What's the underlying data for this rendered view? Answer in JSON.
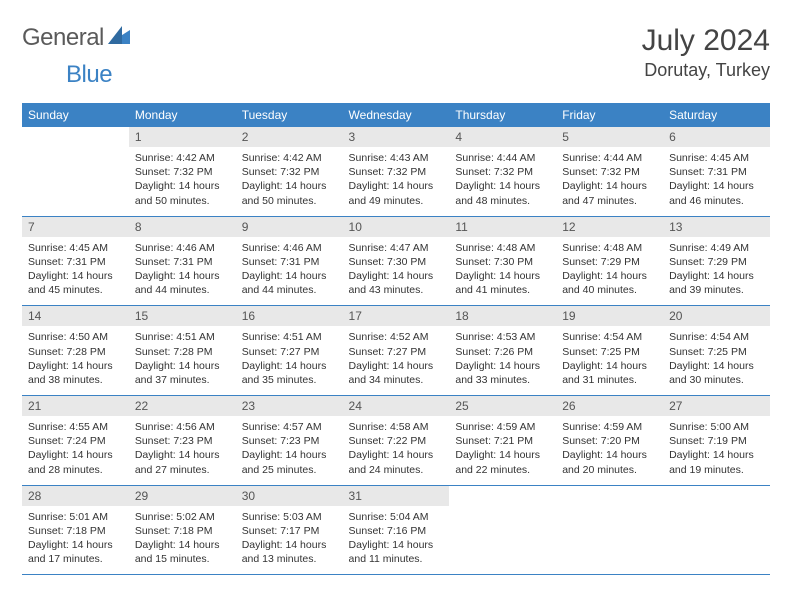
{
  "logo": {
    "text_a": "General",
    "text_b": "Blue"
  },
  "title": {
    "month": "July 2024",
    "location": "Dorutay, Turkey"
  },
  "colors": {
    "header_bg": "#3b82c4",
    "header_text": "#ffffff",
    "daynum_bg": "#e8e8e8",
    "cell_border": "#3b82c4",
    "body_text": "#333333",
    "logo_gray": "#5a5a5a",
    "logo_blue": "#3b82c4",
    "background": "#ffffff"
  },
  "typography": {
    "title_month_fontsize": 30,
    "title_loc_fontsize": 18,
    "dayhdr_fontsize": 12,
    "daynum_fontsize": 12,
    "body_fontsize": 10.5,
    "logo_fontsize": 24
  },
  "day_headers": [
    "Sunday",
    "Monday",
    "Tuesday",
    "Wednesday",
    "Thursday",
    "Friday",
    "Saturday"
  ],
  "weeks": [
    [
      {
        "num": "",
        "lines": []
      },
      {
        "num": "1",
        "lines": [
          "Sunrise: 4:42 AM",
          "Sunset: 7:32 PM",
          "Daylight: 14 hours and 50 minutes."
        ]
      },
      {
        "num": "2",
        "lines": [
          "Sunrise: 4:42 AM",
          "Sunset: 7:32 PM",
          "Daylight: 14 hours and 50 minutes."
        ]
      },
      {
        "num": "3",
        "lines": [
          "Sunrise: 4:43 AM",
          "Sunset: 7:32 PM",
          "Daylight: 14 hours and 49 minutes."
        ]
      },
      {
        "num": "4",
        "lines": [
          "Sunrise: 4:44 AM",
          "Sunset: 7:32 PM",
          "Daylight: 14 hours and 48 minutes."
        ]
      },
      {
        "num": "5",
        "lines": [
          "Sunrise: 4:44 AM",
          "Sunset: 7:32 PM",
          "Daylight: 14 hours and 47 minutes."
        ]
      },
      {
        "num": "6",
        "lines": [
          "Sunrise: 4:45 AM",
          "Sunset: 7:31 PM",
          "Daylight: 14 hours and 46 minutes."
        ]
      }
    ],
    [
      {
        "num": "7",
        "lines": [
          "Sunrise: 4:45 AM",
          "Sunset: 7:31 PM",
          "Daylight: 14 hours and 45 minutes."
        ]
      },
      {
        "num": "8",
        "lines": [
          "Sunrise: 4:46 AM",
          "Sunset: 7:31 PM",
          "Daylight: 14 hours and 44 minutes."
        ]
      },
      {
        "num": "9",
        "lines": [
          "Sunrise: 4:46 AM",
          "Sunset: 7:31 PM",
          "Daylight: 14 hours and 44 minutes."
        ]
      },
      {
        "num": "10",
        "lines": [
          "Sunrise: 4:47 AM",
          "Sunset: 7:30 PM",
          "Daylight: 14 hours and 43 minutes."
        ]
      },
      {
        "num": "11",
        "lines": [
          "Sunrise: 4:48 AM",
          "Sunset: 7:30 PM",
          "Daylight: 14 hours and 41 minutes."
        ]
      },
      {
        "num": "12",
        "lines": [
          "Sunrise: 4:48 AM",
          "Sunset: 7:29 PM",
          "Daylight: 14 hours and 40 minutes."
        ]
      },
      {
        "num": "13",
        "lines": [
          "Sunrise: 4:49 AM",
          "Sunset: 7:29 PM",
          "Daylight: 14 hours and 39 minutes."
        ]
      }
    ],
    [
      {
        "num": "14",
        "lines": [
          "Sunrise: 4:50 AM",
          "Sunset: 7:28 PM",
          "Daylight: 14 hours and 38 minutes."
        ]
      },
      {
        "num": "15",
        "lines": [
          "Sunrise: 4:51 AM",
          "Sunset: 7:28 PM",
          "Daylight: 14 hours and 37 minutes."
        ]
      },
      {
        "num": "16",
        "lines": [
          "Sunrise: 4:51 AM",
          "Sunset: 7:27 PM",
          "Daylight: 14 hours and 35 minutes."
        ]
      },
      {
        "num": "17",
        "lines": [
          "Sunrise: 4:52 AM",
          "Sunset: 7:27 PM",
          "Daylight: 14 hours and 34 minutes."
        ]
      },
      {
        "num": "18",
        "lines": [
          "Sunrise: 4:53 AM",
          "Sunset: 7:26 PM",
          "Daylight: 14 hours and 33 minutes."
        ]
      },
      {
        "num": "19",
        "lines": [
          "Sunrise: 4:54 AM",
          "Sunset: 7:25 PM",
          "Daylight: 14 hours and 31 minutes."
        ]
      },
      {
        "num": "20",
        "lines": [
          "Sunrise: 4:54 AM",
          "Sunset: 7:25 PM",
          "Daylight: 14 hours and 30 minutes."
        ]
      }
    ],
    [
      {
        "num": "21",
        "lines": [
          "Sunrise: 4:55 AM",
          "Sunset: 7:24 PM",
          "Daylight: 14 hours and 28 minutes."
        ]
      },
      {
        "num": "22",
        "lines": [
          "Sunrise: 4:56 AM",
          "Sunset: 7:23 PM",
          "Daylight: 14 hours and 27 minutes."
        ]
      },
      {
        "num": "23",
        "lines": [
          "Sunrise: 4:57 AM",
          "Sunset: 7:23 PM",
          "Daylight: 14 hours and 25 minutes."
        ]
      },
      {
        "num": "24",
        "lines": [
          "Sunrise: 4:58 AM",
          "Sunset: 7:22 PM",
          "Daylight: 14 hours and 24 minutes."
        ]
      },
      {
        "num": "25",
        "lines": [
          "Sunrise: 4:59 AM",
          "Sunset: 7:21 PM",
          "Daylight: 14 hours and 22 minutes."
        ]
      },
      {
        "num": "26",
        "lines": [
          "Sunrise: 4:59 AM",
          "Sunset: 7:20 PM",
          "Daylight: 14 hours and 20 minutes."
        ]
      },
      {
        "num": "27",
        "lines": [
          "Sunrise: 5:00 AM",
          "Sunset: 7:19 PM",
          "Daylight: 14 hours and 19 minutes."
        ]
      }
    ],
    [
      {
        "num": "28",
        "lines": [
          "Sunrise: 5:01 AM",
          "Sunset: 7:18 PM",
          "Daylight: 14 hours and 17 minutes."
        ]
      },
      {
        "num": "29",
        "lines": [
          "Sunrise: 5:02 AM",
          "Sunset: 7:18 PM",
          "Daylight: 14 hours and 15 minutes."
        ]
      },
      {
        "num": "30",
        "lines": [
          "Sunrise: 5:03 AM",
          "Sunset: 7:17 PM",
          "Daylight: 14 hours and 13 minutes."
        ]
      },
      {
        "num": "31",
        "lines": [
          "Sunrise: 5:04 AM",
          "Sunset: 7:16 PM",
          "Daylight: 14 hours and 11 minutes."
        ]
      },
      {
        "num": "",
        "lines": []
      },
      {
        "num": "",
        "lines": []
      },
      {
        "num": "",
        "lines": []
      }
    ]
  ]
}
